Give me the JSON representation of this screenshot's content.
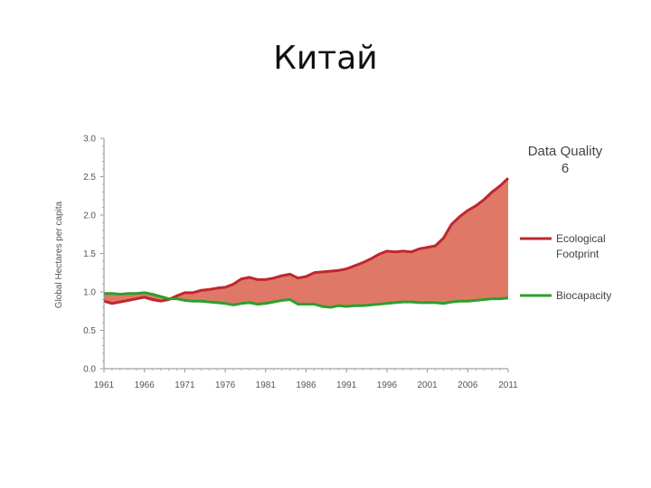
{
  "slide": {
    "title": "Китай"
  },
  "chart_data": {
    "type": "area",
    "title": "",
    "xlabel": "",
    "ylabel": "Global Hectares per capita",
    "xlim": [
      1961,
      2011
    ],
    "ylim": [
      0,
      3.0
    ],
    "y_ticks": [
      0.0,
      0.5,
      1.0,
      1.5,
      2.0,
      2.5,
      3.0
    ],
    "y_tick_labels": [
      "0.0",
      "0.5",
      "1.0",
      "1.5",
      "2.0",
      "2.5",
      "3.0"
    ],
    "x_ticks": [
      1961,
      1966,
      1971,
      1976,
      1981,
      1986,
      1991,
      1996,
      2001,
      2006,
      2011
    ],
    "x_tick_labels": [
      "1961",
      "1966",
      "1971",
      "1976",
      "1981",
      "1986",
      "1991",
      "1996",
      "2001",
      "2006",
      "2011"
    ],
    "annotation": {
      "line1": "Data Quality",
      "line2": "6"
    },
    "series": [
      {
        "name": "Ecological Footprint",
        "legend_lines": [
          "Ecological",
          "Footprint"
        ],
        "color": "#c0272d",
        "x": [
          1961,
          1962,
          1963,
          1964,
          1965,
          1966,
          1967,
          1968,
          1969,
          1970,
          1971,
          1972,
          1973,
          1974,
          1975,
          1976,
          1977,
          1978,
          1979,
          1980,
          1981,
          1982,
          1983,
          1984,
          1985,
          1986,
          1987,
          1988,
          1989,
          1990,
          1991,
          1992,
          1993,
          1994,
          1995,
          1996,
          1997,
          1998,
          1999,
          2000,
          2001,
          2002,
          2003,
          2004,
          2005,
          2006,
          2007,
          2008,
          2009,
          2010,
          2011
        ],
        "values": [
          0.88,
          0.85,
          0.87,
          0.89,
          0.91,
          0.93,
          0.9,
          0.88,
          0.9,
          0.95,
          0.99,
          0.99,
          1.02,
          1.03,
          1.05,
          1.06,
          1.1,
          1.17,
          1.19,
          1.16,
          1.16,
          1.18,
          1.21,
          1.23,
          1.18,
          1.2,
          1.25,
          1.26,
          1.27,
          1.28,
          1.3,
          1.34,
          1.38,
          1.43,
          1.49,
          1.53,
          1.52,
          1.53,
          1.52,
          1.56,
          1.58,
          1.6,
          1.7,
          1.88,
          1.98,
          2.06,
          2.12,
          2.2,
          2.3,
          2.38,
          2.48
        ]
      },
      {
        "name": "Biocapacity",
        "legend_lines": [
          "Biocapacity"
        ],
        "color": "#2ca02c",
        "x": [
          1961,
          1962,
          1963,
          1964,
          1965,
          1966,
          1967,
          1968,
          1969,
          1970,
          1971,
          1972,
          1973,
          1974,
          1975,
          1976,
          1977,
          1978,
          1979,
          1980,
          1981,
          1982,
          1983,
          1984,
          1985,
          1986,
          1987,
          1988,
          1989,
          1990,
          1991,
          1992,
          1993,
          1994,
          1995,
          1996,
          1997,
          1998,
          1999,
          2000,
          2001,
          2002,
          2003,
          2004,
          2005,
          2006,
          2007,
          2008,
          2009,
          2010,
          2011
        ],
        "values": [
          0.98,
          0.98,
          0.97,
          0.98,
          0.98,
          0.99,
          0.97,
          0.94,
          0.91,
          0.91,
          0.89,
          0.88,
          0.88,
          0.87,
          0.86,
          0.85,
          0.83,
          0.85,
          0.86,
          0.84,
          0.85,
          0.87,
          0.89,
          0.9,
          0.84,
          0.84,
          0.84,
          0.81,
          0.8,
          0.82,
          0.81,
          0.82,
          0.82,
          0.83,
          0.84,
          0.85,
          0.86,
          0.87,
          0.87,
          0.86,
          0.86,
          0.86,
          0.85,
          0.87,
          0.88,
          0.88,
          0.89,
          0.9,
          0.91,
          0.91,
          0.92
        ]
      }
    ],
    "deficit_fill_color": "#e07868"
  }
}
